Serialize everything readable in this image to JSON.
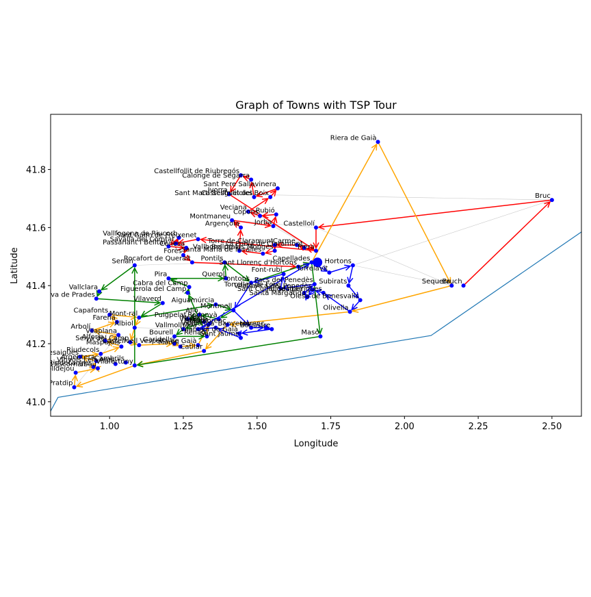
{
  "chart_data": {
    "type": "scatter",
    "title": "Graph of Towns with TSP Tour",
    "xlabel": "Longitude",
    "ylabel": "Latitude",
    "xlim": [
      0.8,
      2.6
    ],
    "ylim": [
      0.95,
      1.99
    ],
    "x_ticks": [
      "1.00",
      "1.25",
      "1.50",
      "1.75",
      "2.00",
      "2.25",
      "2.50"
    ],
    "x_tick_values": [
      1.0,
      1.25,
      1.5,
      1.75,
      2.0,
      2.25,
      2.5
    ],
    "y_ticks": [
      "41.0",
      "41.2",
      "41.4",
      "41.6",
      "41.8"
    ],
    "y_tick_values": [
      1.0,
      1.2,
      1.4,
      1.6,
      1.8
    ],
    "grid": false,
    "colors": {
      "point": "#0000ff",
      "red": "#ff0000",
      "orange": "#ffa500",
      "green": "#008000",
      "blue": "#0000ff",
      "coast": "#1f77b4",
      "edge": "#c8c8c8"
    },
    "hub": {
      "x": 1.705,
      "y": 1.48
    },
    "coastline": [
      [
        0.78,
        0.93
      ],
      [
        0.825,
        1.015
      ],
      [
        2.09,
        1.228
      ],
      [
        2.6,
        1.585
      ]
    ],
    "towns": [
      {
        "name": "Riera de Gaià",
        "x": 1.91,
        "y": 1.895
      },
      {
        "name": "Bruc",
        "x": 2.5,
        "y": 1.695
      },
      {
        "name": "Castellfollit de Riubregós",
        "x": 1.445,
        "y": 1.78
      },
      {
        "name": "Calonge de Segarra",
        "x": 1.48,
        "y": 1.765
      },
      {
        "name": "Sant Pere Sallavinera",
        "x": 1.57,
        "y": 1.735
      },
      {
        "name": "Ivorra",
        "x": 1.405,
        "y": 1.715
      },
      {
        "name": "Sant Martí Sesgueioles",
        "x": 1.49,
        "y": 1.705
      },
      {
        "name": "Castellfollit del Boix",
        "x": 1.545,
        "y": 1.705
      },
      {
        "name": "Veciana",
        "x": 1.47,
        "y": 1.655
      },
      {
        "name": "Rubió",
        "x": 1.565,
        "y": 1.645
      },
      {
        "name": "Copons",
        "x": 1.51,
        "y": 1.64
      },
      {
        "name": "Montmaneu",
        "x": 1.415,
        "y": 1.625
      },
      {
        "name": "Jorba",
        "x": 1.555,
        "y": 1.605
      },
      {
        "name": "Argençola",
        "x": 1.445,
        "y": 1.6
      },
      {
        "name": "Castellolí",
        "x": 1.7,
        "y": 1.6
      },
      {
        "name": "Vallfogona de Riucorb",
        "x": 1.235,
        "y": 1.565
      },
      {
        "name": "Sant Guim de Freixenet",
        "x": 1.3,
        "y": 1.56
      },
      {
        "name": "Savallà del Comtat",
        "x": 1.225,
        "y": 1.545
      },
      {
        "name": "Conesa",
        "x": 1.26,
        "y": 1.53
      },
      {
        "name": "Passanant i Belltall",
        "x": 1.2,
        "y": 1.535
      },
      {
        "name": "Torre de Claramunt",
        "x": 1.56,
        "y": 1.54
      },
      {
        "name": "Carme",
        "x": 1.635,
        "y": 1.54
      },
      {
        "name": "La Pobla de Claramunt",
        "x": 1.66,
        "y": 1.53
      },
      {
        "name": "Vallbona de les Monges",
        "x": 1.56,
        "y": 1.52
      },
      {
        "name": "Piera",
        "x": 1.7,
        "y": 1.52
      },
      {
        "name": "Bellprat",
        "x": 1.44,
        "y": 1.52
      },
      {
        "name": "Forès",
        "x": 1.25,
        "y": 1.505
      },
      {
        "name": "Santa Maria de Miralles",
        "x": 1.52,
        "y": 1.51
      },
      {
        "name": "Rocafort de Queralt",
        "x": 1.28,
        "y": 1.48
      },
      {
        "name": "Pontils",
        "x": 1.39,
        "y": 1.48
      },
      {
        "name": "Capellades",
        "x": 1.685,
        "y": 1.48
      },
      {
        "name": "Sant Llorenç d'Hortons",
        "x": 1.64,
        "y": 1.465
      },
      {
        "name": "Hortons",
        "x": 1.825,
        "y": 1.47
      },
      {
        "name": "Senan",
        "x": 1.085,
        "y": 1.47
      },
      {
        "name": "Torrelavit",
        "x": 1.745,
        "y": 1.445
      },
      {
        "name": "Font-rubí",
        "x": 1.59,
        "y": 1.44
      },
      {
        "name": "Pira",
        "x": 1.2,
        "y": 1.425
      },
      {
        "name": "Querol",
        "x": 1.395,
        "y": 1.425
      },
      {
        "name": "Fontons",
        "x": 1.48,
        "y": 1.41
      },
      {
        "name": "Pacs del Penedès",
        "x": 1.695,
        "y": 1.405
      },
      {
        "name": "Subirats",
        "x": 1.81,
        "y": 1.4
      },
      {
        "name": "Cabra del Camp",
        "x": 1.27,
        "y": 1.395
      },
      {
        "name": "Torrelles de Foix",
        "x": 1.58,
        "y": 1.39
      },
      {
        "name": "Vilafranca del Penedès",
        "x": 1.69,
        "y": 1.385
      },
      {
        "name": "Sant Cugat Sesgarrigues",
        "x": 1.725,
        "y": 1.375
      },
      {
        "name": "Vallclara",
        "x": 0.965,
        "y": 1.38
      },
      {
        "name": "Figuerola del Camp",
        "x": 1.265,
        "y": 1.375
      },
      {
        "name": "Puigdàlber",
        "x": 1.66,
        "y": 1.375
      },
      {
        "name": "Olesa de Bonesvalls",
        "x": 1.85,
        "y": 1.35
      },
      {
        "name": "Santa Margarida",
        "x": 1.67,
        "y": 1.36
      },
      {
        "name": "Vilanova de Prades",
        "x": 0.955,
        "y": 1.355
      },
      {
        "name": "Vilaverd",
        "x": 1.18,
        "y": 1.34
      },
      {
        "name": "Aiguamúrcia",
        "x": 1.36,
        "y": 1.335
      },
      {
        "name": "Montmell",
        "x": 1.42,
        "y": 1.315
      },
      {
        "name": "Olivella",
        "x": 1.815,
        "y": 1.31
      },
      {
        "name": "Capafonts",
        "x": 1.0,
        "y": 1.3
      },
      {
        "name": "Mont-ral",
        "x": 1.1,
        "y": 1.29
      },
      {
        "name": "Alió",
        "x": 1.305,
        "y": 1.3
      },
      {
        "name": "Farena",
        "x": 1.025,
        "y": 1.275
      },
      {
        "name": "Puigpelat",
        "x": 1.265,
        "y": 1.285
      },
      {
        "name": "Rodonyà",
        "x": 1.37,
        "y": 1.285
      },
      {
        "name": "Nulles",
        "x": 1.32,
        "y": 1.275
      },
      {
        "name": "Vilabella",
        "x": 1.34,
        "y": 1.27
      },
      {
        "name": "Bràfim",
        "x": 1.335,
        "y": 1.265
      },
      {
        "name": "Masllorenç",
        "x": 1.4,
        "y": 1.265
      },
      {
        "name": "Albiol",
        "x": 1.085,
        "y": 1.255
      },
      {
        "name": "Vallmoll",
        "x": 1.25,
        "y": 1.25
      },
      {
        "name": "Milà",
        "x": 1.3,
        "y": 1.25
      },
      {
        "name": "Arbolí",
        "x": 0.94,
        "y": 1.245
      },
      {
        "name": "Vilallonga",
        "x": 1.36,
        "y": 1.255
      },
      {
        "name": "Banyeres",
        "x": 1.48,
        "y": 1.255
      },
      {
        "name": "Llorenç",
        "x": 1.53,
        "y": 1.255
      },
      {
        "name": "Bonastre",
        "x": 1.55,
        "y": 1.25
      },
      {
        "name": "Vilanova de Gaià",
        "x": 1.44,
        "y": 1.235
      },
      {
        "name": "Vilaplana",
        "x": 1.03,
        "y": 1.23
      },
      {
        "name": "Bourell",
        "x": 1.22,
        "y": 1.225
      },
      {
        "name": "Renau",
        "x": 1.33,
        "y": 1.225
      },
      {
        "name": "Sant Jaume",
        "x": 1.445,
        "y": 1.22
      },
      {
        "name": "Alforja",
        "x": 0.985,
        "y": 1.21
      },
      {
        "name": "Selva del Camp",
        "x": 1.07,
        "y": 1.205
      },
      {
        "name": "Garidells",
        "x": 1.22,
        "y": 1.2
      },
      {
        "name": "Vespella de Gaià",
        "x": 1.3,
        "y": 1.195
      },
      {
        "name": "Masó",
        "x": 1.715,
        "y": 1.225
      },
      {
        "name": "Maspujols",
        "x": 1.04,
        "y": 1.19
      },
      {
        "name": "Castellvell",
        "x": 1.1,
        "y": 1.195
      },
      {
        "name": "Morell",
        "x": 1.24,
        "y": 1.19
      },
      {
        "name": "Catllar",
        "x": 1.32,
        "y": 1.175
      },
      {
        "name": "Riudecols",
        "x": 0.97,
        "y": 1.165
      },
      {
        "name": "Duesaigües",
        "x": 0.9,
        "y": 1.155
      },
      {
        "name": "Argentera",
        "x": 0.955,
        "y": 1.14
      },
      {
        "name": "Riudecanyes",
        "x": 0.945,
        "y": 1.12
      },
      {
        "name": "Vinyols i els Arcs",
        "x": 1.02,
        "y": 1.13
      },
      {
        "name": "Cambrils",
        "x": 1.055,
        "y": 1.135
      },
      {
        "name": "Vilafortuny",
        "x": 1.085,
        "y": 1.125
      },
      {
        "name": "Vilanova d'Escornalbou",
        "x": 0.96,
        "y": 1.115
      },
      {
        "name": "Colldejou",
        "x": 0.885,
        "y": 1.1
      },
      {
        "name": "Pratdip",
        "x": 0.88,
        "y": 1.05
      },
      {
        "name": "Sequera",
        "x": 2.16,
        "y": 1.4
      },
      {
        "name": "Bruch",
        "x": 2.2,
        "y": 1.4
      }
    ],
    "tour_colors": [
      "red",
      "orange",
      "green",
      "blue"
    ]
  }
}
